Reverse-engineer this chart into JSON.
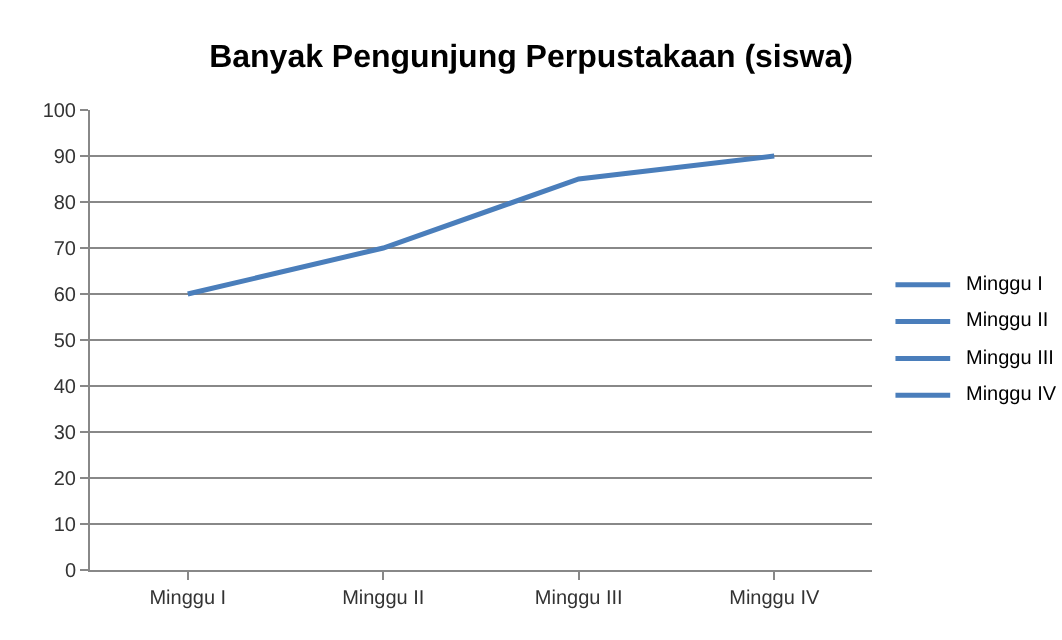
{
  "chart_data": {
    "type": "line",
    "title": "Banyak Pengunjung Perpustakaan (siswa)",
    "categories": [
      "Minggu I",
      "Minggu II",
      "Minggu III",
      "Minggu IV"
    ],
    "series": [
      {
        "color": "#4a7ebb",
        "values": [
          60,
          70,
          85,
          90
        ]
      }
    ],
    "ylim": [
      0,
      100
    ],
    "yticks": [
      0,
      10,
      20,
      30,
      40,
      50,
      60,
      70,
      80,
      90,
      100
    ],
    "grid": "y",
    "marker": "none",
    "line_style": "solid"
  }
}
